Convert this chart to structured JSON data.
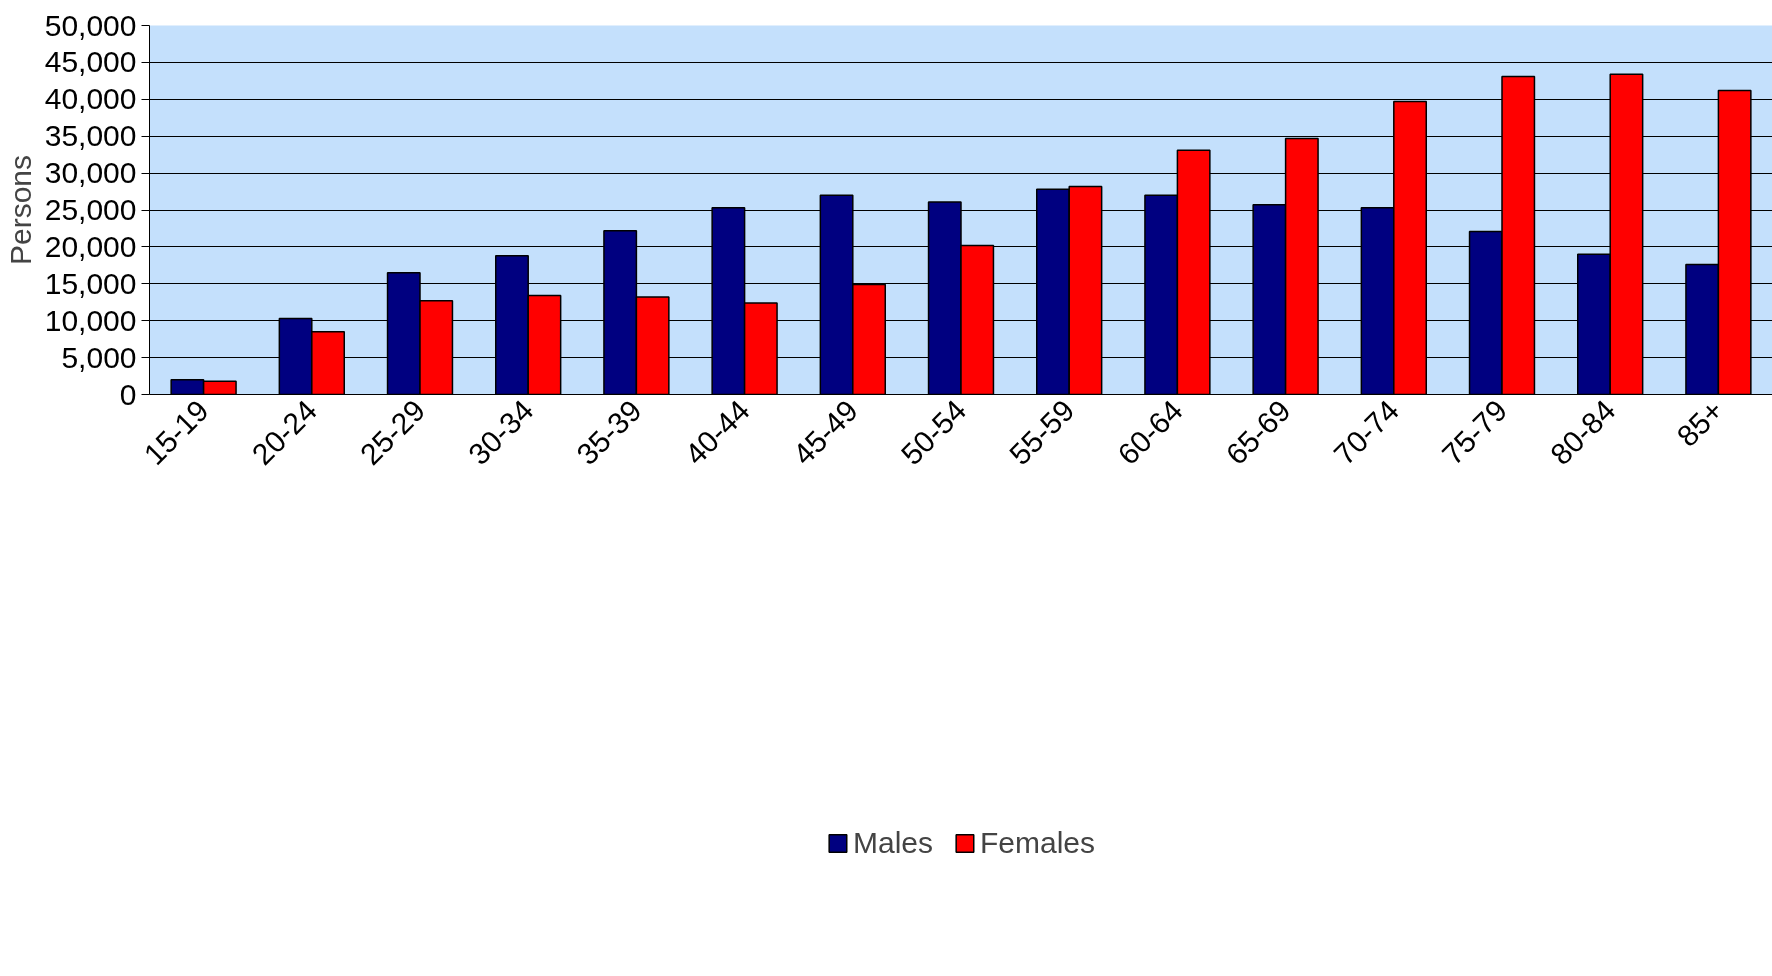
{
  "chart_data": {
    "type": "bar",
    "ylabel": "Persons",
    "categories": [
      "15-19",
      "20-24",
      "25-29",
      "30-34",
      "35-39",
      "40-44",
      "45-49",
      "50-54",
      "55-59",
      "60-64",
      "65-69",
      "70-74",
      "75-79",
      "80-84",
      "85+"
    ],
    "series": [
      {
        "name": "Males",
        "color": "#000080",
        "values": [
          2000,
          10300,
          16500,
          18800,
          22200,
          25300,
          27000,
          26100,
          27800,
          27000,
          25700,
          25300,
          22100,
          19000,
          17600
        ]
      },
      {
        "name": "Females",
        "color": "#ff0000",
        "values": [
          1800,
          8500,
          12700,
          13400,
          13200,
          12400,
          14900,
          20200,
          28200,
          33100,
          34700,
          39700,
          43100,
          43400,
          41200
        ]
      }
    ],
    "ylim": [
      0,
      50000
    ],
    "yticks": [
      {
        "value": 0,
        "label": "0"
      },
      {
        "value": 5000,
        "label": "5,000"
      },
      {
        "value": 10000,
        "label": "10,000"
      },
      {
        "value": 15000,
        "label": "15,000"
      },
      {
        "value": 20000,
        "label": "20,000"
      },
      {
        "value": 25000,
        "label": "25,000"
      },
      {
        "value": 30000,
        "label": "30,000"
      },
      {
        "value": 35000,
        "label": "35,000"
      },
      {
        "value": 40000,
        "label": "40,000"
      },
      {
        "value": 45000,
        "label": "45,000"
      },
      {
        "value": 50000,
        "label": "50,000"
      }
    ],
    "grid": "y",
    "legend": "bottom"
  }
}
